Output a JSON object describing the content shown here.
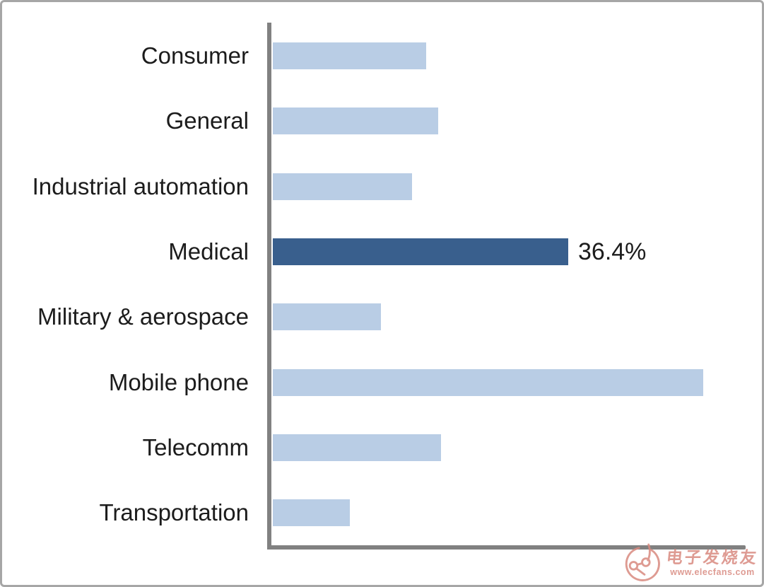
{
  "chart_data": {
    "type": "bar",
    "orientation": "horizontal",
    "title": "",
    "xlabel": "",
    "ylabel": "",
    "categories": [
      "Consumer",
      "General",
      "Industrial automation",
      "Medical",
      "Military & aerospace",
      "Mobile phone",
      "Telecomm",
      "Transportation"
    ],
    "values": [
      18.9,
      20.4,
      17.2,
      36.4,
      13.3,
      53.1,
      20.7,
      9.5
    ],
    "unit": "%",
    "data_labels": [
      "",
      "",
      "",
      "36.4%",
      "",
      "",
      "",
      ""
    ],
    "highlight_index": 3,
    "highlight_category": "Medical",
    "xlim": [
      0,
      58.2
    ],
    "grid": false,
    "legend": null,
    "colors": {
      "bar": "#b9cde5",
      "highlight": "#395f8d",
      "axis": "#818181",
      "label_text": "#1c1c1c"
    }
  },
  "watermark": {
    "site_name": "电子发烧友",
    "site_url": "www.elecfans.com",
    "color": "#d98a80"
  }
}
